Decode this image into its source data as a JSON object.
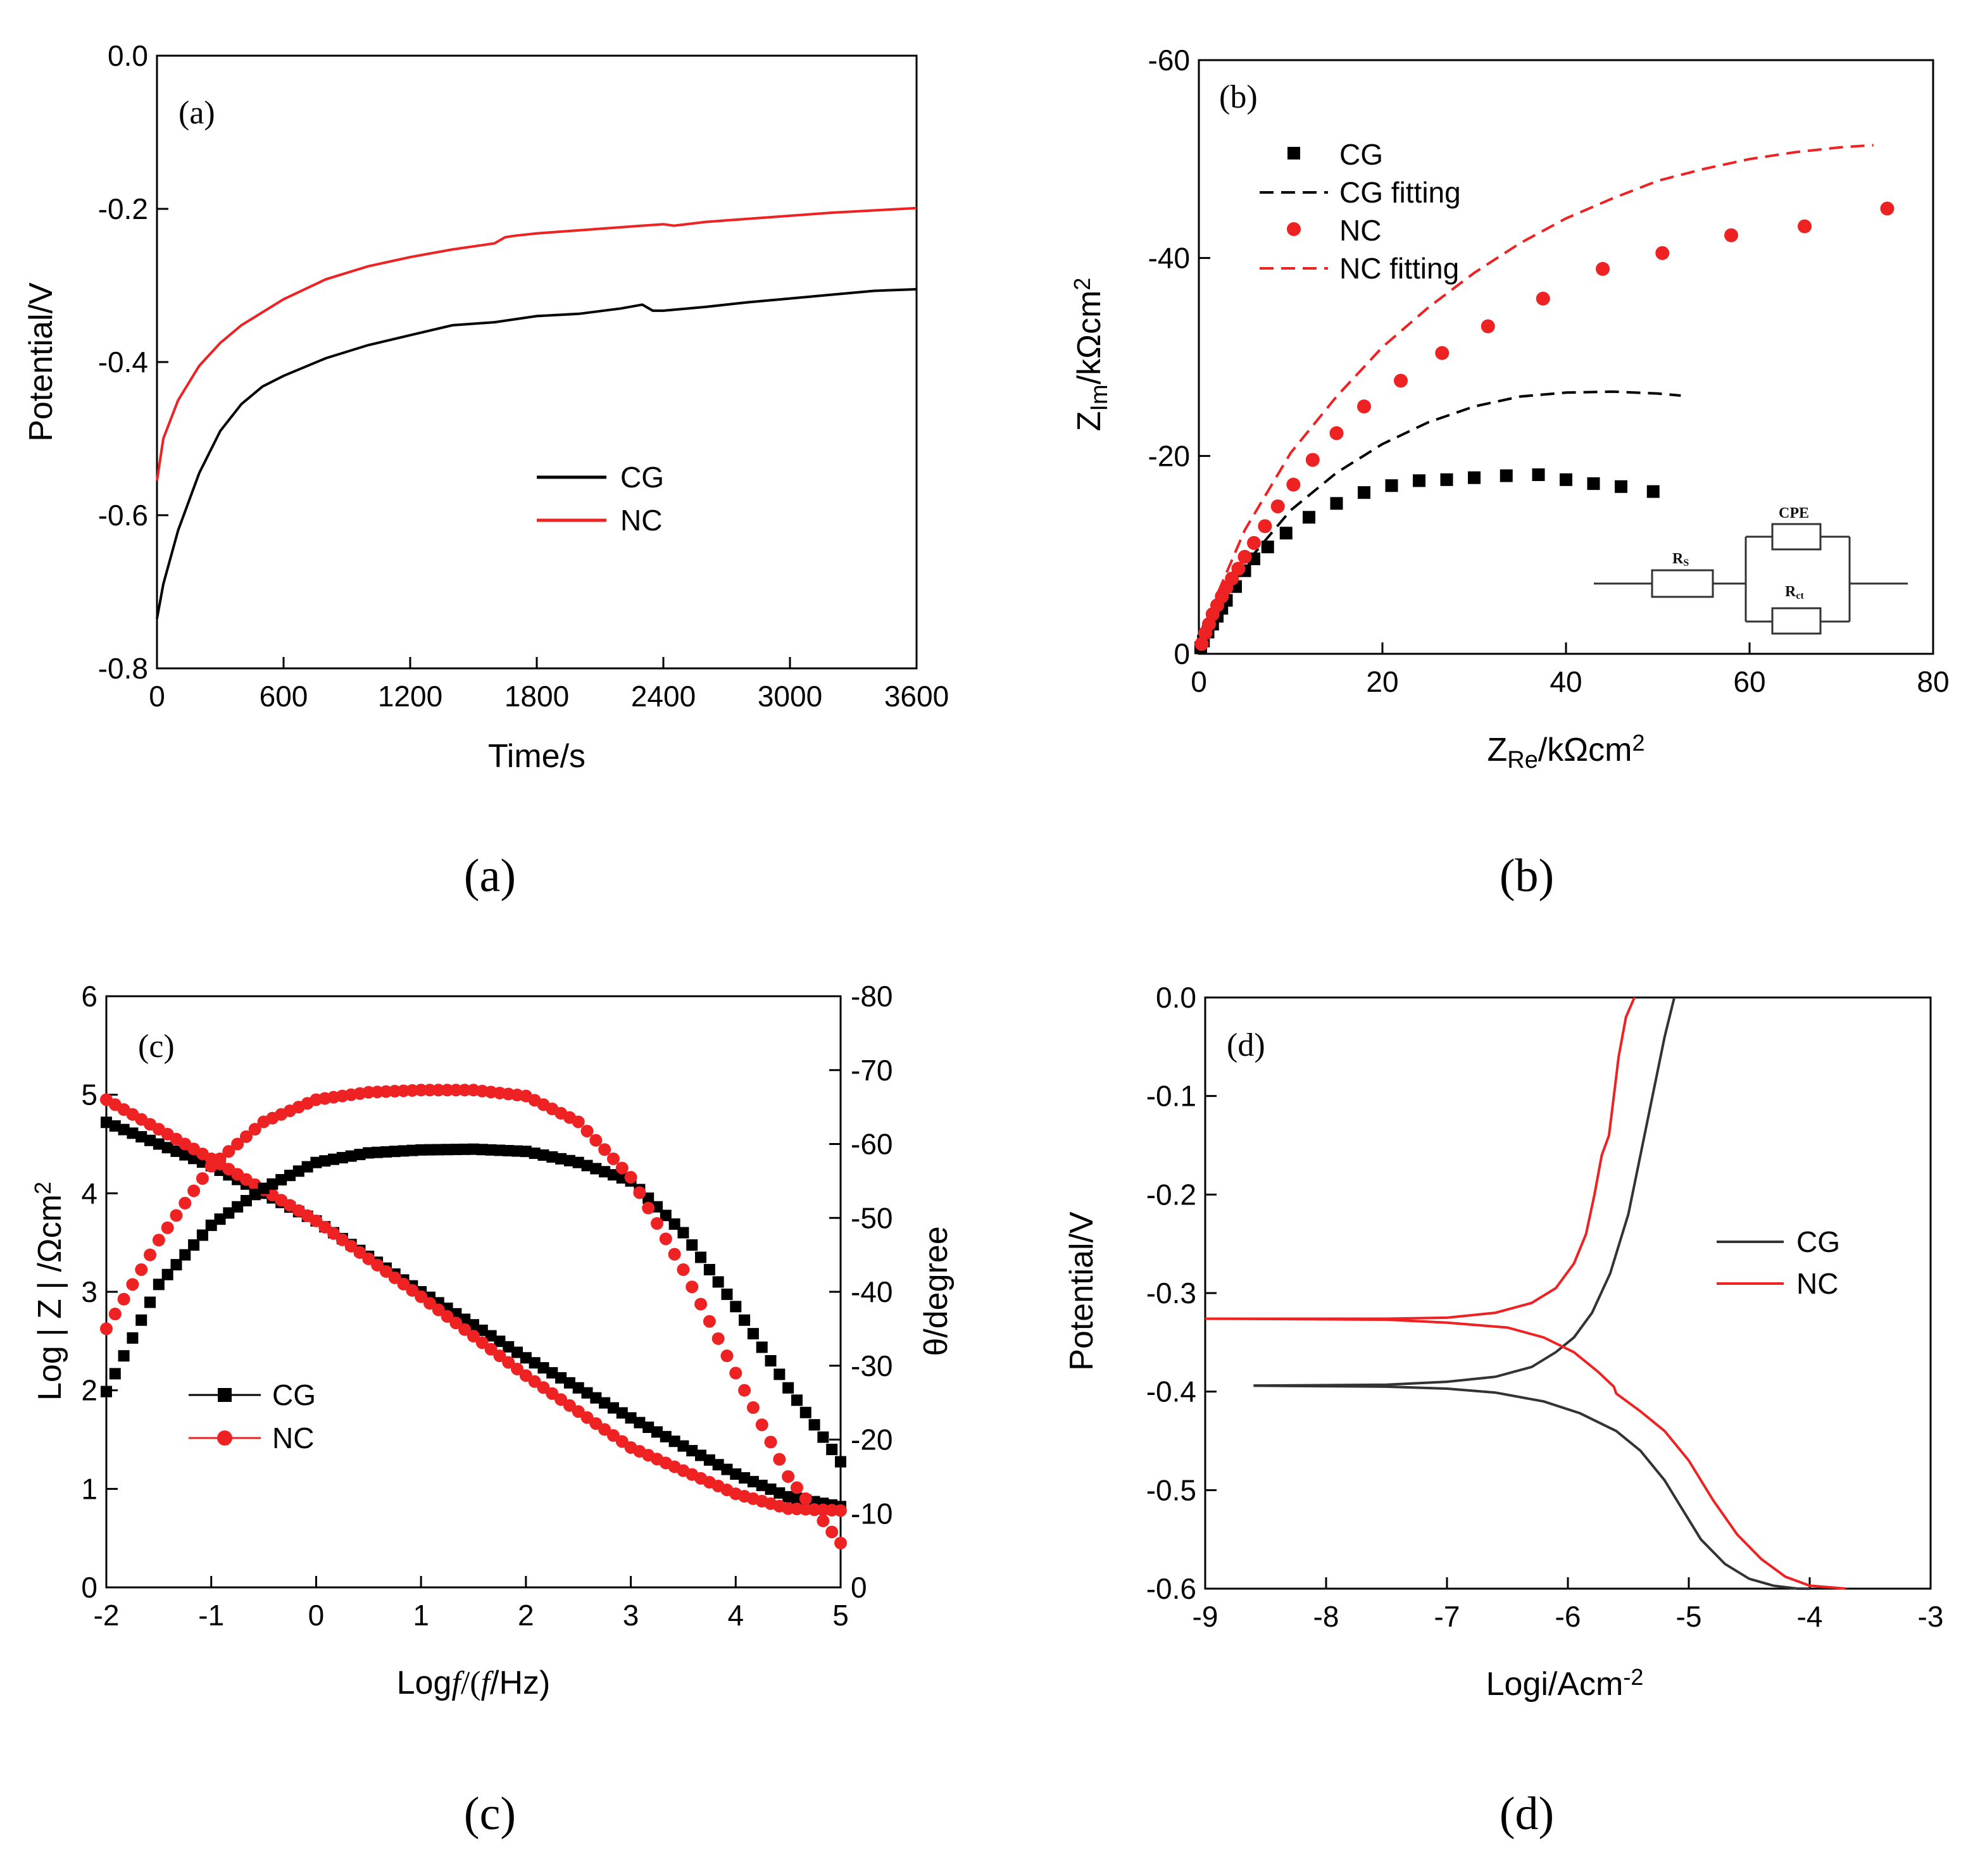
{
  "captions": {
    "a": "(a)",
    "b": "(b)",
    "c": "(c)",
    "d": "(d)"
  },
  "colors": {
    "cg": "#000000",
    "nc": "#ee2222"
  },
  "chart_data": [
    {
      "id": "a",
      "type": "line",
      "panel_tag": "(a)",
      "xlabel": "Time/s",
      "ylabel": "Potential/V",
      "xlim": [
        0,
        3600
      ],
      "ylim": [
        -0.8,
        0.0
      ],
      "xticks": [
        0,
        600,
        1200,
        1800,
        2400,
        3000,
        3600
      ],
      "yticks": [
        0.0,
        -0.2,
        -0.4,
        -0.6,
        -0.8
      ],
      "xtick_labels": [
        "0",
        "600",
        "1200",
        "1800",
        "2400",
        "3000",
        "3600"
      ],
      "ytick_labels": [
        "0.0",
        "-0.2",
        "-0.4",
        "-0.6",
        "-0.8"
      ],
      "legend": [
        "CG",
        "NC"
      ],
      "legend_position": "center-right",
      "series": [
        {
          "name": "CG",
          "x": [
            0,
            30,
            100,
            200,
            300,
            400,
            500,
            600,
            800,
            1000,
            1200,
            1400,
            1600,
            1800,
            2000,
            2200,
            2300,
            2350,
            2400,
            2600,
            2800,
            3000,
            3200,
            3400,
            3600
          ],
          "y": [
            -0.735,
            -0.69,
            -0.62,
            -0.545,
            -0.49,
            -0.455,
            -0.432,
            -0.418,
            -0.395,
            -0.378,
            -0.365,
            -0.352,
            -0.348,
            -0.34,
            -0.337,
            -0.33,
            -0.325,
            -0.333,
            -0.333,
            -0.328,
            -0.322,
            -0.317,
            -0.312,
            -0.307,
            -0.305
          ]
        },
        {
          "name": "NC",
          "x": [
            0,
            30,
            100,
            200,
            300,
            400,
            500,
            600,
            800,
            1000,
            1200,
            1400,
            1600,
            1650,
            1700,
            1800,
            2000,
            2200,
            2400,
            2450,
            2600,
            2800,
            3000,
            3200,
            3400,
            3600
          ],
          "y": [
            -0.555,
            -0.5,
            -0.45,
            -0.405,
            -0.375,
            -0.352,
            -0.335,
            -0.318,
            -0.292,
            -0.275,
            -0.263,
            -0.253,
            -0.245,
            -0.237,
            -0.235,
            -0.232,
            -0.228,
            -0.224,
            -0.22,
            -0.222,
            -0.217,
            -0.213,
            -0.209,
            -0.205,
            -0.202,
            -0.199
          ]
        }
      ]
    },
    {
      "id": "b",
      "type": "scatter",
      "panel_tag": "(b)",
      "xlabel_main": "Z",
      "xlabel_sub": "Re",
      "xlabel_unit": "/kΩcm",
      "xlabel_sup": "2",
      "ylabel_main": "Z",
      "ylabel_sub": "Im",
      "ylabel_unit": "/kΩcm",
      "ylabel_sup": "2",
      "xlim": [
        0,
        80
      ],
      "ylim": [
        0,
        -60
      ],
      "xticks": [
        0,
        20,
        40,
        60,
        80
      ],
      "yticks": [
        0,
        -20,
        -40,
        -60
      ],
      "xtick_labels": [
        "0",
        "20",
        "40",
        "60",
        "80"
      ],
      "ytick_labels": [
        "0",
        "-20",
        "-40",
        "-60"
      ],
      "legend": [
        "CG",
        "CG fitting",
        "NC",
        "NC fitting"
      ],
      "legend_position": "top-left",
      "circuit_labels": {
        "rs": "R",
        "rs_sub": "S",
        "cpe": "CPE",
        "rct": "R",
        "rct_sub": "ct"
      },
      "series": [
        {
          "name": "CG",
          "style": "square-markers",
          "x": [
            0.2,
            0.5,
            1.0,
            1.5,
            2.0,
            2.5,
            3.0,
            4.0,
            5.0,
            6.0,
            7.5,
            9.5,
            12,
            15,
            18,
            21,
            24,
            27,
            30,
            33.5,
            37,
            40,
            43,
            46,
            49.5
          ],
          "y": [
            -0.6,
            -1.3,
            -2.2,
            -3.0,
            -3.8,
            -4.6,
            -5.4,
            -6.8,
            -8.4,
            -9.6,
            -10.8,
            -12.2,
            -13.8,
            -15.2,
            -16.3,
            -17.0,
            -17.5,
            -17.6,
            -17.8,
            -18.0,
            -18.1,
            -17.6,
            -17.2,
            -16.9,
            -16.4
          ]
        },
        {
          "name": "CG fitting",
          "style": "dashed",
          "x": [
            0,
            2,
            5,
            10,
            15,
            20,
            25,
            30,
            35,
            40,
            45,
            50,
            52.5
          ],
          "y": [
            0,
            -4.5,
            -9.0,
            -14.5,
            -18.3,
            -21.2,
            -23.4,
            -25.0,
            -26.0,
            -26.4,
            -26.5,
            -26.3,
            -26.1
          ]
        },
        {
          "name": "NC",
          "style": "circle-markers",
          "x": [
            0.3,
            0.7,
            1.1,
            1.5,
            2.0,
            2.5,
            3.0,
            3.6,
            4.3,
            5.0,
            6.0,
            7.2,
            8.6,
            10.3,
            12.4,
            15,
            18,
            22,
            26.5,
            31.5,
            37.5,
            44,
            50.5,
            58,
            66,
            75
          ],
          "y": [
            -1.0,
            -2.1,
            -3.0,
            -4.0,
            -4.9,
            -5.8,
            -6.7,
            -7.6,
            -8.6,
            -9.8,
            -11.2,
            -12.9,
            -14.9,
            -17.1,
            -19.6,
            -22.3,
            -25.0,
            -27.6,
            -30.4,
            -33.1,
            -35.9,
            -38.9,
            -40.5,
            -42.3,
            -43.2,
            -45.0
          ]
        },
        {
          "name": "NC fitting",
          "style": "dashed",
          "x": [
            0,
            2,
            5,
            10,
            15,
            20,
            25,
            30,
            35,
            40,
            45,
            50,
            55,
            60,
            65,
            70,
            73.5
          ],
          "y": [
            0,
            -6.0,
            -12.5,
            -20.3,
            -26.0,
            -31.0,
            -35.0,
            -38.5,
            -41.5,
            -44.0,
            -46.0,
            -47.8,
            -49.0,
            -50.0,
            -50.7,
            -51.2,
            -51.4
          ]
        }
      ]
    },
    {
      "id": "c",
      "type": "scatter",
      "panel_tag": "(c)",
      "xlabel_main": "Log",
      "xlabel_f": "f",
      "xlabel_rest": "/(",
      "xlabel_f2": "f",
      "xlabel_end": "/Hz)",
      "ylabel": "Log|Z|/Ωcm²",
      "ylabel_text": "Log",
      "ylabel_z": "Z",
      "ylabel_unit": "/Ωcm",
      "ylabel_sup": "2",
      "y2label": "θ/degree",
      "xlim": [
        -2,
        5
      ],
      "ylim": [
        0,
        6
      ],
      "y2lim": [
        0,
        -80
      ],
      "xticks": [
        -2,
        -1,
        0,
        1,
        2,
        3,
        4,
        5
      ],
      "yticks": [
        0,
        1,
        2,
        3,
        4,
        5,
        6
      ],
      "y2ticks": [
        0,
        -10,
        -20,
        -30,
        -40,
        -50,
        -60,
        -70,
        -80
      ],
      "xtick_labels": [
        "-2",
        "-1",
        "0",
        "1",
        "2",
        "3",
        "4",
        "5"
      ],
      "ytick_labels": [
        "0",
        "1",
        "2",
        "3",
        "4",
        "5",
        "6"
      ],
      "y2tick_labels": [
        "0",
        "-10",
        "-20",
        "-30",
        "-40",
        "-50",
        "-60",
        "-70",
        "-80"
      ],
      "legend": [
        "CG",
        "NC"
      ],
      "legend_position": "lower-left",
      "series": [
        {
          "name": "CG |Z|",
          "axis": "left",
          "x": [
            -2,
            -1,
            0,
            1,
            2,
            3,
            4,
            4.5,
            5
          ],
          "y": [
            4.72,
            4.28,
            3.72,
            3.0,
            2.33,
            1.72,
            1.15,
            0.92,
            0.82
          ]
        },
        {
          "name": "NC |Z|",
          "axis": "left",
          "x": [
            -2,
            -1,
            0,
            1,
            2,
            3,
            4,
            4.5,
            5
          ],
          "y": [
            4.95,
            4.35,
            3.72,
            2.95,
            2.15,
            1.42,
            0.95,
            0.8,
            0.78
          ]
        },
        {
          "name": "CG θ",
          "axis": "right",
          "x": [
            -2,
            -1.5,
            -1,
            -0.5,
            0,
            0.5,
            1,
            1.5,
            2,
            2.5,
            3,
            3.5,
            4,
            4.5,
            5
          ],
          "y": [
            -26.5,
            -41,
            -49,
            -54,
            -57.5,
            -58.8,
            -59.2,
            -59.3,
            -59.0,
            -57.5,
            -55,
            -48,
            -38,
            -27,
            -17
          ]
        },
        {
          "name": "NC θ",
          "axis": "right",
          "x": [
            -2,
            -1.5,
            -1,
            -0.5,
            0,
            0.5,
            1,
            1.5,
            2,
            2.5,
            3,
            3.5,
            4,
            4.5,
            5
          ],
          "y": [
            -35,
            -47,
            -57,
            -63,
            -66,
            -67,
            -67.3,
            -67.3,
            -66.5,
            -63,
            -55.5,
            -43,
            -29,
            -15,
            -6
          ]
        }
      ]
    },
    {
      "id": "d",
      "type": "line",
      "panel_tag": "(d)",
      "xlabel": "Logi/Acm",
      "xlabel_sup": "-2",
      "ylabel": "Potential/V",
      "xlim": [
        -9,
        -3
      ],
      "ylim": [
        -0.6,
        0.0
      ],
      "xticks": [
        -9,
        -8,
        -7,
        -6,
        -5,
        -4,
        -3
      ],
      "yticks": [
        0.0,
        -0.1,
        -0.2,
        -0.3,
        -0.4,
        -0.5,
        -0.6
      ],
      "xtick_labels": [
        "-9",
        "-8",
        "-7",
        "-6",
        "-5",
        "-4",
        "-3"
      ],
      "ytick_labels": [
        "0.0",
        "-0.1",
        "-0.2",
        "-0.3",
        "-0.4",
        "-0.5",
        "-0.6"
      ],
      "legend": [
        "CG",
        "NC"
      ],
      "legend_position": "center-right",
      "series": [
        {
          "name": "CG",
          "x": [
            -8.6,
            -7.5,
            -7.0,
            -6.6,
            -6.3,
            -6.1,
            -5.95,
            -5.8,
            -5.65,
            -5.5,
            -5.4,
            -5.3,
            -5.2,
            -5.12
          ],
          "y": [
            -0.394,
            -0.393,
            -0.39,
            -0.385,
            -0.375,
            -0.36,
            -0.345,
            -0.32,
            -0.28,
            -0.22,
            -0.16,
            -0.1,
            -0.04,
            0.0
          ],
          "x2": [
            -8.6,
            -7.5,
            -7.0,
            -6.6,
            -6.2,
            -5.9,
            -5.6,
            -5.4,
            -5.2,
            -5.05,
            -4.9,
            -4.7,
            -4.5,
            -4.3,
            -4.1,
            -4.0
          ],
          "y2": [
            -0.394,
            -0.395,
            -0.397,
            -0.401,
            -0.41,
            -0.422,
            -0.44,
            -0.46,
            -0.49,
            -0.52,
            -0.55,
            -0.575,
            -0.59,
            -0.597,
            -0.6,
            -0.6
          ]
        },
        {
          "name": "NC",
          "x": [
            -9.0,
            -7.5,
            -7.0,
            -6.6,
            -6.3,
            -6.1,
            -5.95,
            -5.85,
            -5.78,
            -5.72,
            -5.66,
            -5.62,
            -5.58,
            -5.52,
            -5.45
          ],
          "y": [
            -0.326,
            -0.326,
            -0.325,
            -0.32,
            -0.31,
            -0.295,
            -0.27,
            -0.24,
            -0.2,
            -0.16,
            -0.14,
            -0.1,
            -0.06,
            -0.02,
            0.0
          ],
          "x2": [
            -9.0,
            -7.5,
            -7.0,
            -6.5,
            -6.2,
            -5.95,
            -5.75,
            -5.62,
            -5.6,
            -5.4,
            -5.2,
            -5.0,
            -4.8,
            -4.6,
            -4.4,
            -4.2,
            -4.0,
            -3.7
          ],
          "y2": [
            -0.326,
            -0.327,
            -0.33,
            -0.335,
            -0.345,
            -0.36,
            -0.38,
            -0.395,
            -0.402,
            -0.42,
            -0.44,
            -0.47,
            -0.51,
            -0.545,
            -0.57,
            -0.588,
            -0.597,
            -0.6
          ]
        }
      ]
    }
  ]
}
